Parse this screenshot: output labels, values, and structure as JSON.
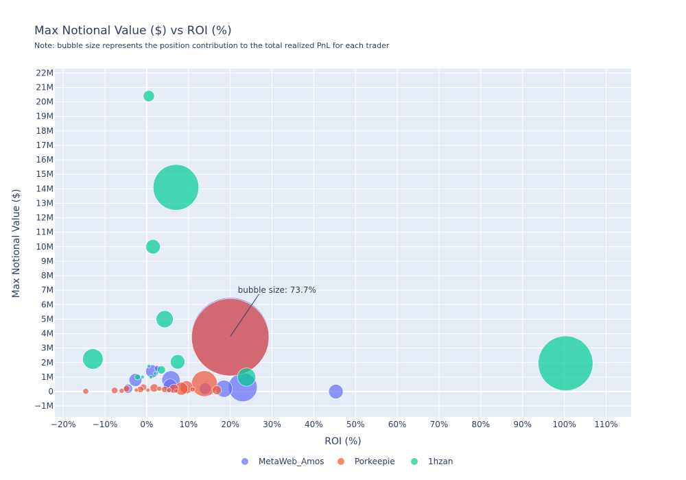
{
  "chart_data": {
    "type": "scatter",
    "title": "Max Notional Value ($) vs ROI (%)",
    "subtitle": "Note: bubble size represents the position contribution to the total realized PnL for each trader",
    "xlabel": "ROI (%)",
    "ylabel": "Max Notional Value ($)",
    "xlim": [
      -22,
      116
    ],
    "ylim": [
      -1.75,
      22.3
    ],
    "x_ticks": [
      {
        "v": -20,
        "label": "−20%"
      },
      {
        "v": -10,
        "label": "−10%"
      },
      {
        "v": 0,
        "label": "0%"
      },
      {
        "v": 10,
        "label": "10%"
      },
      {
        "v": 20,
        "label": "20%"
      },
      {
        "v": 30,
        "label": "30%"
      },
      {
        "v": 40,
        "label": "40%"
      },
      {
        "v": 50,
        "label": "50%"
      },
      {
        "v": 60,
        "label": "60%"
      },
      {
        "v": 70,
        "label": "70%"
      },
      {
        "v": 80,
        "label": "80%"
      },
      {
        "v": 90,
        "label": "90%"
      },
      {
        "v": 100,
        "label": "100%"
      },
      {
        "v": 110,
        "label": "110%"
      }
    ],
    "y_ticks": [
      {
        "v": -1,
        "label": "−1M"
      },
      {
        "v": 0,
        "label": "0"
      },
      {
        "v": 1,
        "label": "1M"
      },
      {
        "v": 2,
        "label": "2M"
      },
      {
        "v": 3,
        "label": "3M"
      },
      {
        "v": 4,
        "label": "4M"
      },
      {
        "v": 5,
        "label": "5M"
      },
      {
        "v": 6,
        "label": "6M"
      },
      {
        "v": 7,
        "label": "7M"
      },
      {
        "v": 8,
        "label": "8M"
      },
      {
        "v": 9,
        "label": "9M"
      },
      {
        "v": 10,
        "label": "10M"
      },
      {
        "v": 11,
        "label": "11M"
      },
      {
        "v": 12,
        "label": "12M"
      },
      {
        "v": 13,
        "label": "13M"
      },
      {
        "v": 14,
        "label": "14M"
      },
      {
        "v": 15,
        "label": "15M"
      },
      {
        "v": 16,
        "label": "16M"
      },
      {
        "v": 17,
        "label": "17M"
      },
      {
        "v": 18,
        "label": "18M"
      },
      {
        "v": 19,
        "label": "19M"
      },
      {
        "v": 20,
        "label": "20M"
      },
      {
        "v": 21,
        "label": "21M"
      },
      {
        "v": 22,
        "label": "22M"
      }
    ],
    "series": [
      {
        "name": "MetaWeb_Amos",
        "color": "#636efa",
        "points": [
          {
            "x": 20.0,
            "y": 3.8,
            "size": 73.7
          },
          {
            "x": 23.0,
            "y": 0.3,
            "size": 10.0
          },
          {
            "x": 5.8,
            "y": 0.8,
            "size": 4.0
          },
          {
            "x": 18.5,
            "y": 0.2,
            "size": 3.5
          },
          {
            "x": 45.3,
            "y": 0.0,
            "size": 2.5
          },
          {
            "x": 1.3,
            "y": 1.4,
            "size": 2.0
          },
          {
            "x": -2.7,
            "y": 0.8,
            "size": 2.0
          },
          {
            "x": 5.6,
            "y": 0.4,
            "size": 2.2
          },
          {
            "x": 14.0,
            "y": 0.2,
            "size": 1.6
          },
          {
            "x": -4.5,
            "y": 0.2,
            "size": 1.0
          },
          {
            "x": 2.5,
            "y": 1.6,
            "size": 0.4
          }
        ]
      },
      {
        "name": "Porkeepie",
        "color": "#ef553b",
        "points": [
          {
            "x": 20.0,
            "y": 3.75,
            "size": 72.0
          },
          {
            "x": 13.8,
            "y": 0.55,
            "size": 8.0
          },
          {
            "x": 9.5,
            "y": 0.3,
            "size": 2.0
          },
          {
            "x": 8.3,
            "y": 0.2,
            "size": 2.0
          },
          {
            "x": 16.8,
            "y": 0.1,
            "size": 1.0
          },
          {
            "x": 6.5,
            "y": 0.2,
            "size": 1.0
          },
          {
            "x": 1.8,
            "y": 0.25,
            "size": 0.8
          },
          {
            "x": 4.3,
            "y": 0.15,
            "size": 0.5
          },
          {
            "x": -0.8,
            "y": 0.3,
            "size": 0.5
          },
          {
            "x": -1.5,
            "y": 0.15,
            "size": 0.5
          },
          {
            "x": -4.8,
            "y": 0.2,
            "size": 0.5
          },
          {
            "x": -7.7,
            "y": 0.08,
            "size": 0.5
          },
          {
            "x": -14.6,
            "y": 0.02,
            "size": 0.4
          },
          {
            "x": -6.0,
            "y": 0.05,
            "size": 0.3
          },
          {
            "x": 3.0,
            "y": 0.2,
            "size": 0.3
          },
          {
            "x": 5.3,
            "y": 0.1,
            "size": 0.3
          },
          {
            "x": 0.3,
            "y": 0.1,
            "size": 0.2
          },
          {
            "x": -2.5,
            "y": 0.1,
            "size": 0.2
          },
          {
            "x": 7.0,
            "y": 0.05,
            "size": 0.2
          },
          {
            "x": 11.0,
            "y": 0.15,
            "size": 0.3
          }
        ]
      },
      {
        "name": "1hzan",
        "color": "#00cc96",
        "points": [
          {
            "x": 100.3,
            "y": 1.95,
            "size": 36.0
          },
          {
            "x": 7.0,
            "y": 14.1,
            "size": 25.0
          },
          {
            "x": -12.9,
            "y": 2.25,
            "size": 5.0
          },
          {
            "x": 23.9,
            "y": 1.0,
            "size": 4.0
          },
          {
            "x": 4.3,
            "y": 5.0,
            "size": 3.5
          },
          {
            "x": 7.4,
            "y": 2.05,
            "size": 2.5
          },
          {
            "x": 1.5,
            "y": 10.0,
            "size": 2.5
          },
          {
            "x": 0.5,
            "y": 20.4,
            "size": 1.5
          },
          {
            "x": 3.5,
            "y": 1.5,
            "size": 0.8
          },
          {
            "x": -2.2,
            "y": 1.0,
            "size": 0.4
          },
          {
            "x": 1.0,
            "y": 1.0,
            "size": 0.15
          },
          {
            "x": -1.0,
            "y": 1.0,
            "size": 0.15
          },
          {
            "x": 0.5,
            "y": 1.75,
            "size": 0.15
          },
          {
            "x": 2.0,
            "y": 1.25,
            "size": 0.15
          }
        ]
      }
    ],
    "annotation": {
      "text": "bubble size: 73.7%",
      "x": 20.0,
      "y": 3.8
    }
  }
}
